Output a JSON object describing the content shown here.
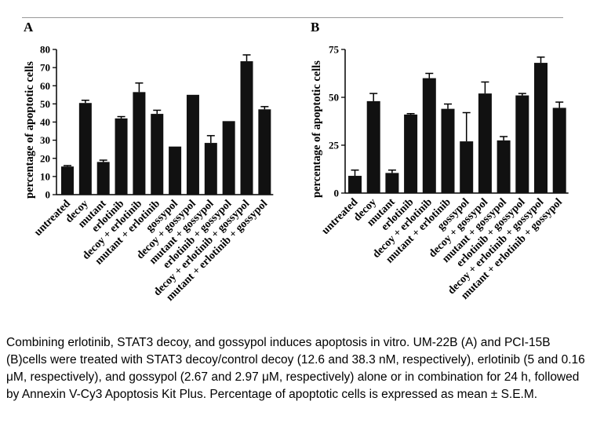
{
  "chart_data": [
    {
      "type": "bar",
      "panel_label": "A",
      "ylabel": "percentage of apoptotic cells",
      "ylim": [
        0,
        80
      ],
      "yticks": [
        0,
        10,
        20,
        30,
        40,
        50,
        60,
        70,
        80
      ],
      "categories": [
        "untreated",
        "decoy",
        "mutant",
        "erlotinib",
        "decoy + erlotinib",
        "mutant + erlotinib",
        "gossypol",
        "decoy + gossypol",
        "mutant + gossypol",
        "erlotinib + gossypol",
        "decoy + erlotinib + gossypol",
        "mutant + erlotinib + gossypol"
      ],
      "values": [
        15.5,
        50.5,
        18,
        42,
        56.5,
        44.5,
        26.5,
        55,
        28.5,
        40.5,
        73.5,
        47
      ],
      "errors": [
        0.5,
        1.5,
        1,
        1,
        5,
        2,
        0,
        0,
        4,
        0,
        3.5,
        1.5
      ],
      "color": "#111111"
    },
    {
      "type": "bar",
      "panel_label": "B",
      "ylabel": "percentage of apoptotic cells",
      "ylim": [
        0,
        75
      ],
      "yticks": [
        0,
        25,
        50,
        75
      ],
      "categories": [
        "untreated",
        "decoy",
        "mutant",
        "erlotinib",
        "decoy + erlotinib",
        "mutant + erlotinib",
        "gossypol",
        "decoy + gossypol",
        "mutant + gossypol",
        "erlotinib + gossypol",
        "decoy + erlotinib + gossypol",
        "mutant + erlotinib + gossypol"
      ],
      "values": [
        9,
        48,
        10.5,
        41,
        60,
        44,
        27,
        52,
        27.5,
        51,
        68,
        44.5
      ],
      "errors": [
        3,
        4,
        1.5,
        0.5,
        2.5,
        2.5,
        15,
        6,
        2,
        1,
        3,
        3
      ],
      "color": "#111111"
    }
  ],
  "caption": "Combining erlotinib, STAT3 decoy, and gossypol induces apoptosis in vitro. UM-22B (A) and PCI-15B (B)cells were treated with STAT3 decoy/control decoy (12.6 and 38.3 nM, respectively), erlotinib (5 and 0.16 μM, respectively), and gossypol (2.67 and 2.97 μM, respectively) alone or in combination for 24 h, followed by Annexin V-Cy3 Apoptosis Kit Plus. Percentage of apoptotic cells is expressed as mean ± S.E.M."
}
